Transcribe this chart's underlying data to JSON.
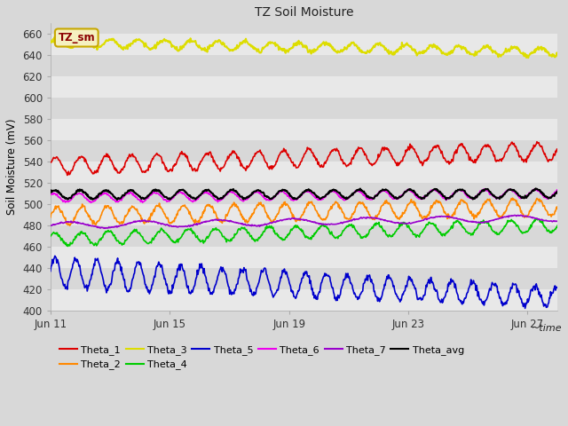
{
  "title": "TZ Soil Moisture",
  "xlabel": "~time",
  "ylabel": "Soil Moisture (mV)",
  "ylim": [
    400,
    670
  ],
  "xtick_labels": [
    "Jun 11",
    "Jun 15",
    "Jun 19",
    "Jun 23",
    "Jun 27"
  ],
  "fig_bg_color": "#d8d8d8",
  "plot_bg_color": "#e8e8e8",
  "band_color_light": "#e8e8e8",
  "band_color_dark": "#d8d8d8",
  "legend_label": "TZ_sm",
  "legend_bg": "#f5f0c0",
  "legend_border": "#c8a800",
  "legend_text_color": "#8B0000",
  "series_order": [
    "Theta_1",
    "Theta_2",
    "Theta_3",
    "Theta_4",
    "Theta_5",
    "Theta_6",
    "Theta_7",
    "Theta_avg"
  ],
  "series": {
    "Theta_1": {
      "color": "#dd0000",
      "lw": 1.2
    },
    "Theta_2": {
      "color": "#ff8800",
      "lw": 1.2
    },
    "Theta_3": {
      "color": "#dddd00",
      "lw": 1.5
    },
    "Theta_4": {
      "color": "#00cc00",
      "lw": 1.2
    },
    "Theta_5": {
      "color": "#0000cc",
      "lw": 1.2
    },
    "Theta_6": {
      "color": "#ee00ee",
      "lw": 1.2
    },
    "Theta_7": {
      "color": "#9900cc",
      "lw": 1.2
    },
    "Theta_avg": {
      "color": "#000000",
      "lw": 1.5
    }
  },
  "n_points": 816,
  "days": 17
}
